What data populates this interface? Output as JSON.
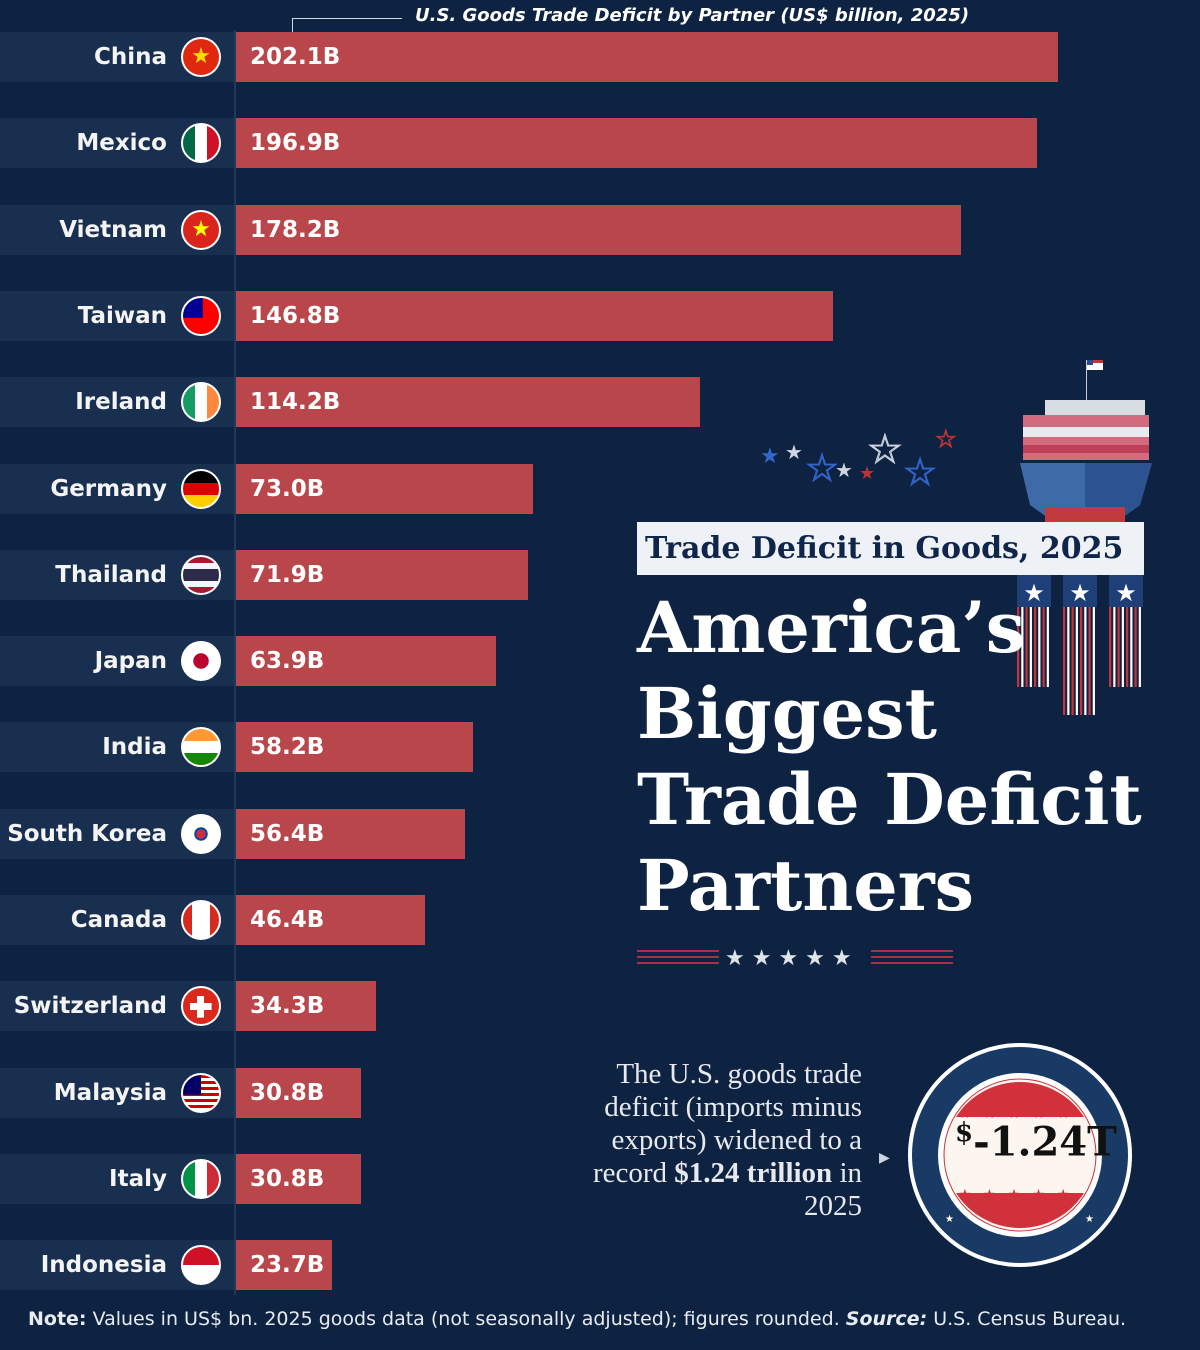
{
  "chart_data": {
    "type": "bar",
    "orientation": "horizontal",
    "title": "U.S. Goods Trade Deficit by Partner (US$ billion, 2025)",
    "categories": [
      "China",
      "Mexico",
      "Vietnam",
      "Taiwan",
      "Ireland",
      "Germany",
      "Thailand",
      "Japan",
      "India",
      "South Korea",
      "Canada",
      "Switzerland",
      "Malaysia",
      "Italy",
      "Indonesia"
    ],
    "values": [
      202.1,
      196.9,
      178.2,
      146.8,
      114.2,
      73.0,
      71.9,
      63.9,
      58.2,
      56.4,
      46.4,
      34.3,
      30.8,
      30.8,
      23.7
    ],
    "data_labels": [
      "202.1B",
      "196.9B",
      "178.2B",
      "146.8B",
      "114.2B",
      "73.0B",
      "71.9B",
      "63.9B",
      "58.2B",
      "56.4B",
      "46.4B",
      "34.3B",
      "30.8B",
      "30.8B",
      "23.7B"
    ],
    "flags": [
      "china-flag",
      "mexico-flag",
      "vietnam-flag",
      "taiwan-flag",
      "ireland-flag",
      "germany-flag",
      "thailand-flag",
      "japan-flag",
      "india-flag",
      "south-korea-flag",
      "canada-flag",
      "switzerland-flag",
      "malaysia-flag",
      "italy-flag",
      "indonesia-flag"
    ],
    "bar_color": "#b9464a",
    "grid": false
  },
  "header": {
    "subtitle": "Trade Deficit in Goods, 2025",
    "headline_lines": [
      "America’s",
      "Biggest",
      "Trade Deficit",
      "Partners"
    ]
  },
  "callout": {
    "text_plain": "The U.S. goods trade deficit (imports minus exports) widened to a record",
    "text_bold": "$1.24 trillion",
    "text_end": "in 2025",
    "badge_currency": "$",
    "badge_value": "-1.24T"
  },
  "footer": {
    "note_label": "Note:",
    "note_text": " Values in US$ bn. 2025 goods data (not seasonally adjusted); figures rounded. ",
    "source_label": "Source:",
    "source_text": " U.S. Census Bureau."
  },
  "colors": {
    "background": "#0e2342",
    "bar": "#b9464a",
    "accent_red": "#c8323a"
  }
}
